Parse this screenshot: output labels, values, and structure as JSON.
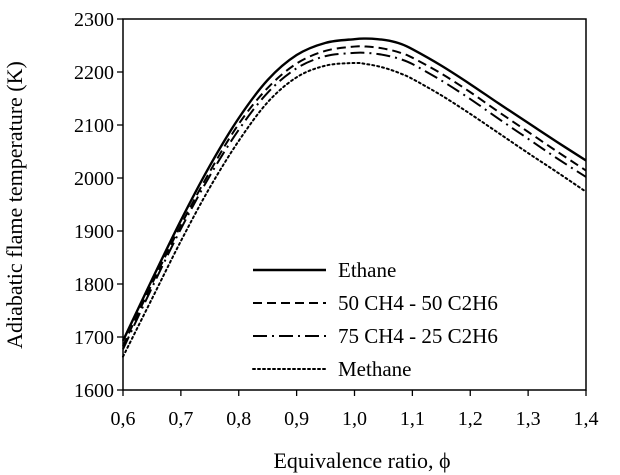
{
  "chart_data": {
    "type": "line",
    "title": "",
    "xlabel": "Equivalence ratio, ϕ",
    "ylabel": "Adiabatic flame temperature (K)",
    "xlim": [
      0.6,
      1.4
    ],
    "ylim": [
      1600,
      2300
    ],
    "x_ticks": [
      "0,6",
      "0,7",
      "0,8",
      "0,9",
      "1,0",
      "1,1",
      "1,2",
      "1,3",
      "1,4"
    ],
    "y_ticks": [
      "1600",
      "1700",
      "1800",
      "1900",
      "2000",
      "2100",
      "2200",
      "2300"
    ],
    "grid": false,
    "legend_position": "bottom-center",
    "series": [
      {
        "name": "Ethane",
        "style": "solid",
        "color": "#000000",
        "x": [
          0.6,
          0.65,
          0.7,
          0.75,
          0.8,
          0.85,
          0.9,
          0.95,
          1.0,
          1.02,
          1.04,
          1.06,
          1.08,
          1.1,
          1.15,
          1.2,
          1.25,
          1.3,
          1.35,
          1.4
        ],
        "y": [
          1693,
          1808,
          1920,
          2023,
          2113,
          2185,
          2232,
          2255,
          2262,
          2263,
          2262,
          2259,
          2253,
          2243,
          2212,
          2177,
          2140,
          2104,
          2068,
          2033
        ]
      },
      {
        "name": "50 CH4 - 50 C2H6",
        "style": "dashed",
        "color": "#000000",
        "x": [
          0.6,
          0.65,
          0.7,
          0.75,
          0.8,
          0.85,
          0.9,
          0.95,
          1.0,
          1.02,
          1.04,
          1.06,
          1.08,
          1.1,
          1.15,
          1.2,
          1.25,
          1.3,
          1.35,
          1.4
        ],
        "y": [
          1683,
          1800,
          1911,
          2012,
          2102,
          2170,
          2216,
          2240,
          2248,
          2248,
          2246,
          2242,
          2236,
          2227,
          2197,
          2162,
          2124,
          2087,
          2050,
          2014
        ]
      },
      {
        "name": "75 CH4 - 25 C2H6",
        "style": "dash-dot",
        "color": "#000000",
        "x": [
          0.6,
          0.65,
          0.7,
          0.75,
          0.8,
          0.85,
          0.9,
          0.95,
          1.0,
          1.02,
          1.04,
          1.06,
          1.08,
          1.1,
          1.15,
          1.2,
          1.25,
          1.3,
          1.35,
          1.4
        ],
        "y": [
          1677,
          1793,
          1904,
          2004,
          2091,
          2161,
          2207,
          2230,
          2236,
          2236,
          2234,
          2230,
          2224,
          2215,
          2184,
          2149,
          2111,
          2074,
          2037,
          2002
        ]
      },
      {
        "name": "Methane",
        "style": "dotted",
        "color": "#000000",
        "x": [
          0.6,
          0.65,
          0.7,
          0.75,
          0.8,
          0.85,
          0.9,
          0.95,
          1.0,
          1.02,
          1.04,
          1.06,
          1.08,
          1.1,
          1.15,
          1.2,
          1.25,
          1.3,
          1.35,
          1.4
        ],
        "y": [
          1663,
          1772,
          1881,
          1982,
          2070,
          2143,
          2190,
          2212,
          2217,
          2215,
          2211,
          2205,
          2197,
          2187,
          2156,
          2121,
          2084,
          2047,
          2011,
          1974
        ]
      }
    ]
  }
}
